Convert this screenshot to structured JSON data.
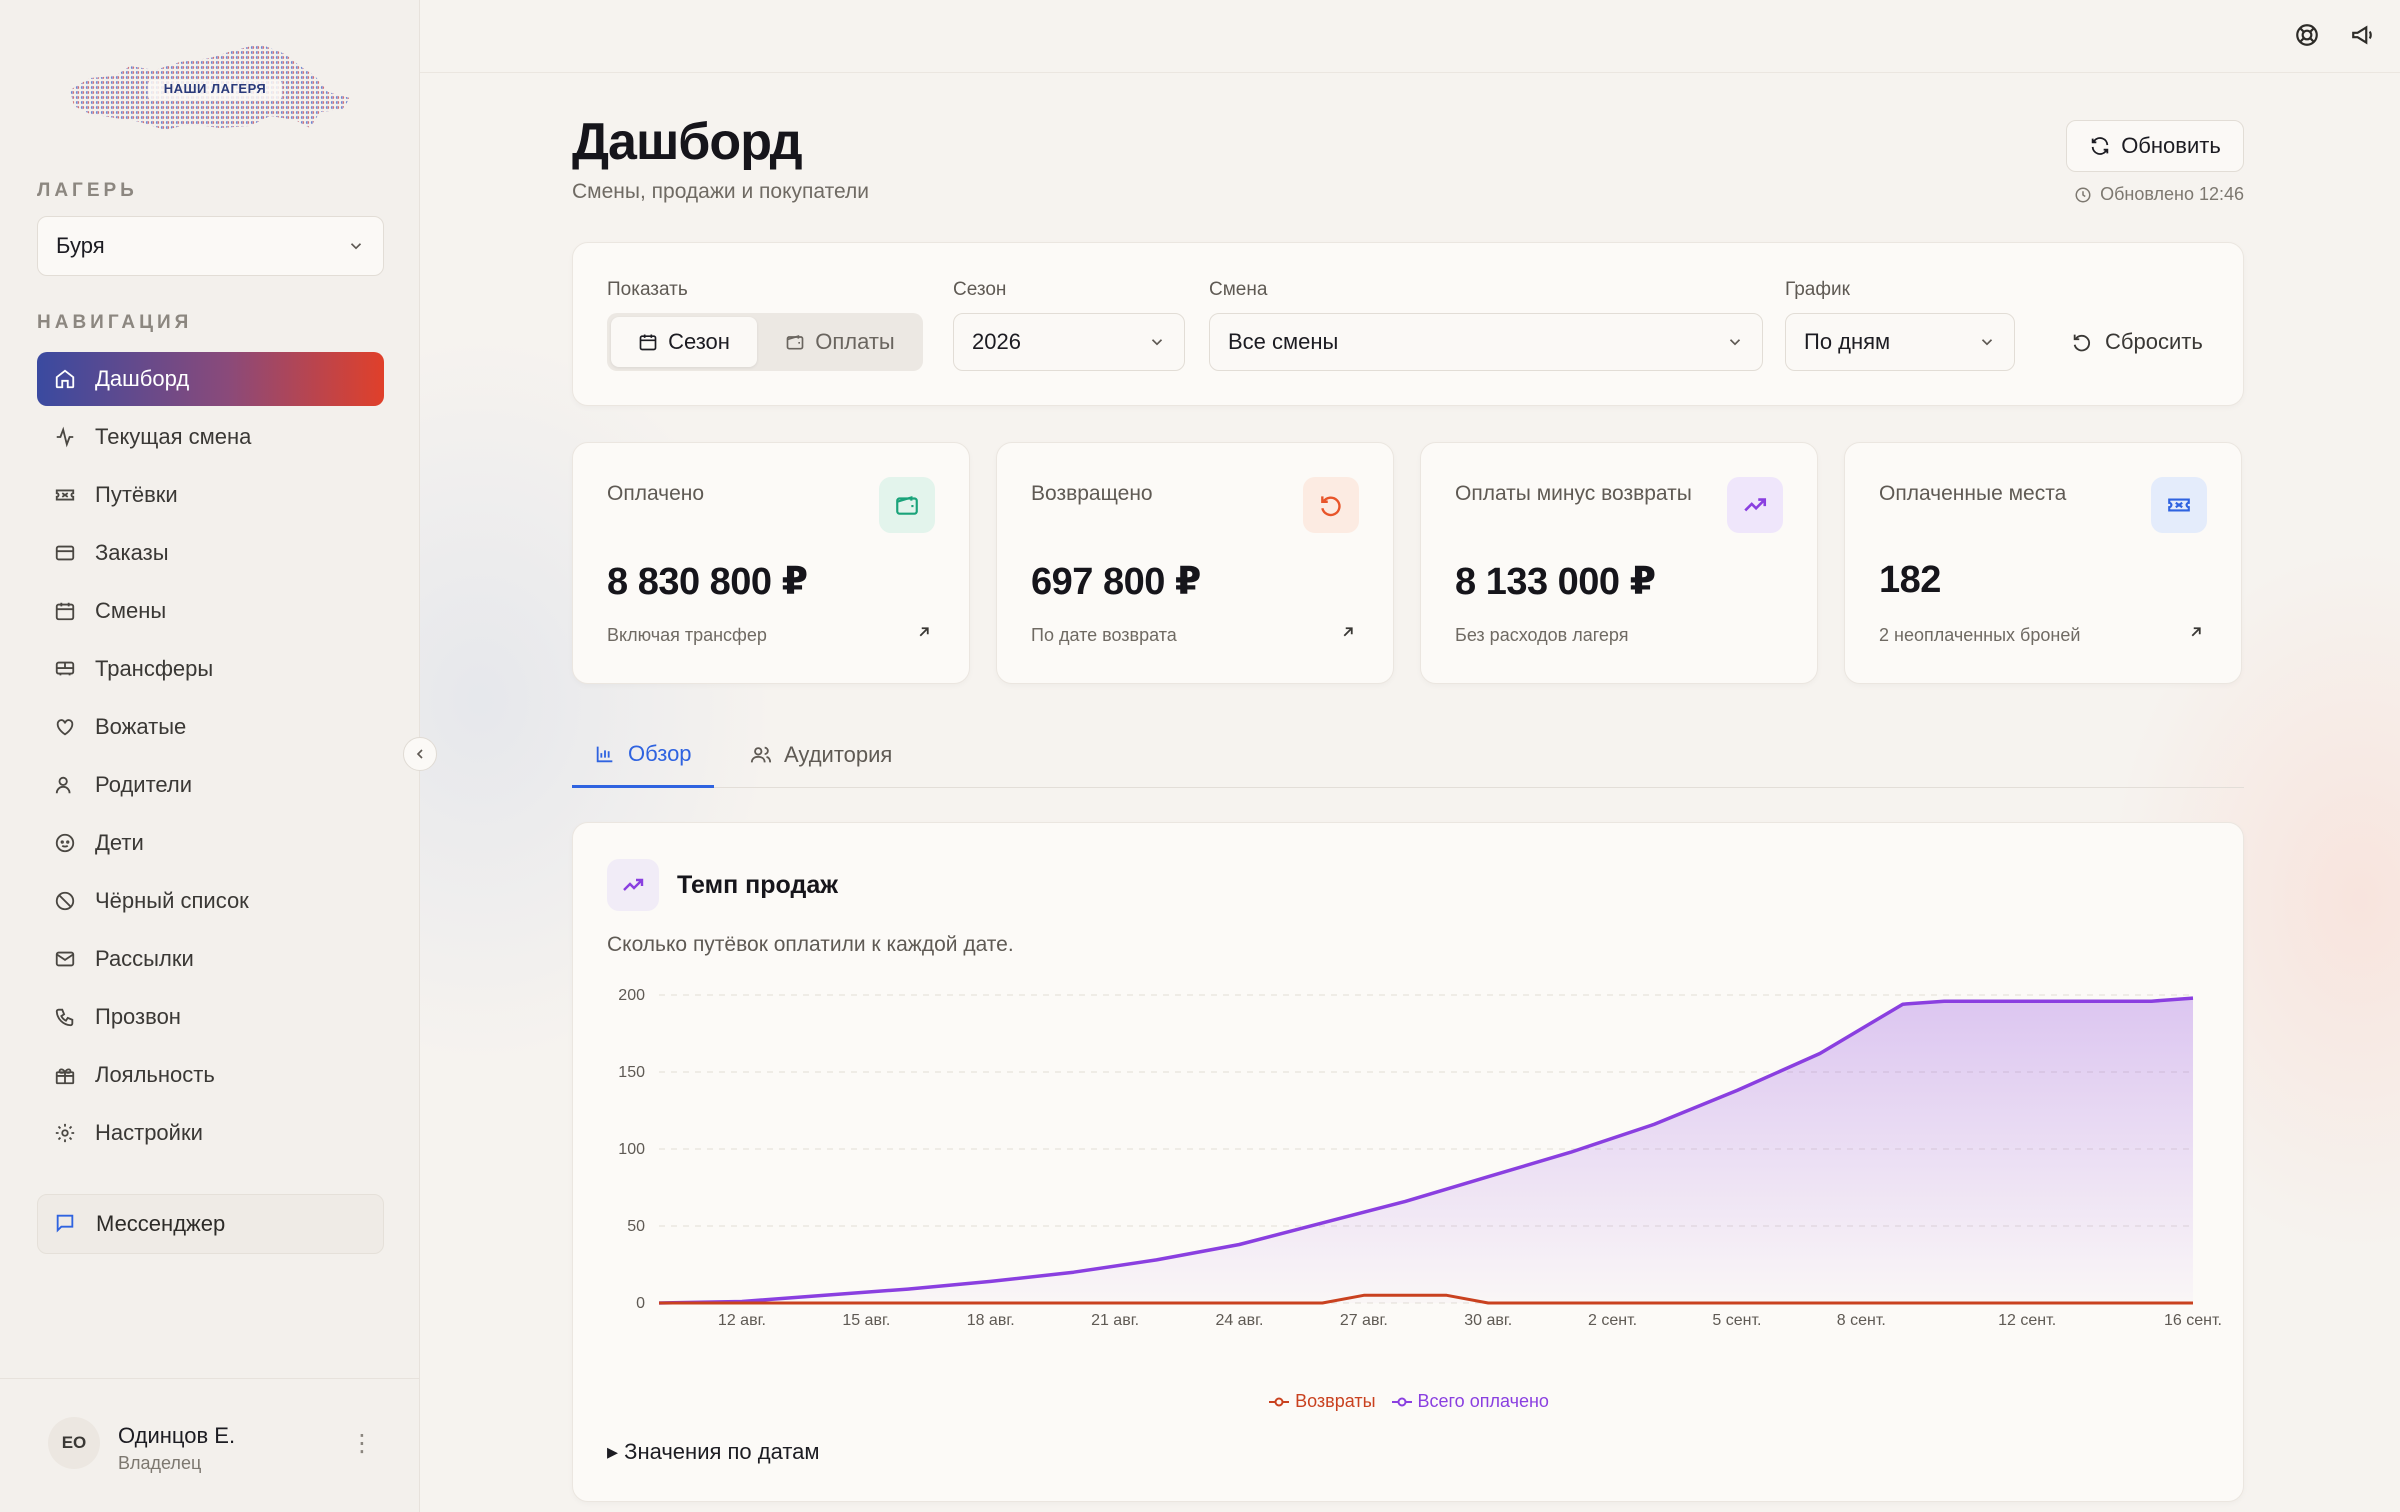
{
  "sidebar": {
    "logo_text": "НАШИ ЛАГЕРЯ",
    "camp_label": "ЛАГЕРЬ",
    "camp_value": "Буря",
    "nav_label": "НАВИГАЦИЯ",
    "items": [
      {
        "label": "Дашборд",
        "icon": "home-icon"
      },
      {
        "label": "Текущая смена",
        "icon": "activity-icon"
      },
      {
        "label": "Путёвки",
        "icon": "ticket-icon"
      },
      {
        "label": "Заказы",
        "icon": "card-icon"
      },
      {
        "label": "Смены",
        "icon": "calendar-icon"
      },
      {
        "label": "Трансферы",
        "icon": "bus-icon"
      },
      {
        "label": "Вожатые",
        "icon": "heart-hand-icon"
      },
      {
        "label": "Родители",
        "icon": "users-icon"
      },
      {
        "label": "Дети",
        "icon": "baby-icon"
      },
      {
        "label": "Чёрный список",
        "icon": "ban-icon"
      },
      {
        "label": "Рассылки",
        "icon": "mail-icon"
      },
      {
        "label": "Прозвон",
        "icon": "phone-icon"
      },
      {
        "label": "Лояльность",
        "icon": "gift-icon"
      },
      {
        "label": "Настройки",
        "icon": "gear-icon"
      }
    ],
    "messenger_label": "Мессенджер",
    "user": {
      "initials": "ЕО",
      "name": "Одинцов Е.",
      "role": "Владелец"
    }
  },
  "header": {
    "title": "Дашборд",
    "subtitle": "Смены, продажи и покупатели",
    "refresh_label": "Обновить",
    "updated_text": "Обновлено 12:46"
  },
  "filters": {
    "show_label": "Показать",
    "show_options": [
      "Сезон",
      "Оплаты"
    ],
    "season_label": "Сезон",
    "season_value": "2026",
    "shift_label": "Смена",
    "shift_value": "Все смены",
    "chart_label": "График",
    "chart_value": "По дням",
    "reset_label": "Сбросить"
  },
  "stats": [
    {
      "label": "Оплачено",
      "value": "8 830 800 ₽",
      "note": "Включая трансфер",
      "icon": "wallet-icon",
      "color": "#1aa37a",
      "bg": "#e3f4ec"
    },
    {
      "label": "Возвращено",
      "value": "697 800 ₽",
      "note": "По дате возврата",
      "icon": "undo-icon",
      "color": "#e8552a",
      "bg": "#fcebe2"
    },
    {
      "label": "Оплаты минус возвраты",
      "value": "8 133 000 ₽",
      "note": "Без расходов лагеря",
      "icon": "trend-up-icon",
      "color": "#8a3fe0",
      "bg": "#efe6fb"
    },
    {
      "label": "Оплаченные места",
      "value": "182",
      "note": "2 неоплаченных броней",
      "icon": "ticket-icon",
      "color": "#2f63e0",
      "bg": "#e4ecfb"
    }
  ],
  "tabs": [
    {
      "label": "Обзор",
      "icon": "bar-chart-icon"
    },
    {
      "label": "Аудитория",
      "icon": "users-icon"
    }
  ],
  "chart_card": {
    "title": "Темп продаж",
    "description": "Сколько путёвок оплатили к каждой дате.",
    "values_toggle": "▸ Значения по датам"
  },
  "colors": {
    "accent": "#2f63e0",
    "paid": "#8a3fe0",
    "refunds": "#c9411f"
  },
  "chart_data": {
    "type": "area",
    "x_ticks": [
      "12 авг.",
      "15 авг.",
      "18 авг.",
      "21 авг.",
      "24 авг.",
      "27 авг.",
      "30 авг.",
      "2 сент.",
      "5 сент.",
      "8 сент.",
      "12 сент.",
      "16 сент."
    ],
    "ylim": [
      0,
      200
    ],
    "y_ticks": [
      0,
      50,
      100,
      150,
      200
    ],
    "grid": true,
    "legend_position": "bottom",
    "series": [
      {
        "name": "Возвраты",
        "color": "#c9411f",
        "type": "line",
        "points": [
          [
            "10 авг.",
            0
          ],
          [
            "26 авг.",
            0
          ],
          [
            "27 авг.",
            5
          ],
          [
            "28 авг.",
            5
          ],
          [
            "29 авг.",
            5
          ],
          [
            "30 авг.",
            0
          ],
          [
            "16 сент.",
            0
          ]
        ]
      },
      {
        "name": "Всего оплачено",
        "color": "#8a3fe0",
        "type": "area",
        "points": [
          [
            "10 авг.",
            0
          ],
          [
            "12 авг.",
            1
          ],
          [
            "14 авг.",
            5
          ],
          [
            "16 авг.",
            9
          ],
          [
            "18 авг.",
            14
          ],
          [
            "20 авг.",
            20
          ],
          [
            "22 авг.",
            28
          ],
          [
            "24 авг.",
            38
          ],
          [
            "26 авг.",
            52
          ],
          [
            "28 авг.",
            66
          ],
          [
            "30 авг.",
            82
          ],
          [
            "1 сент.",
            98
          ],
          [
            "3 сент.",
            116
          ],
          [
            "5 сент.",
            138
          ],
          [
            "7 сент.",
            162
          ],
          [
            "8 сент.",
            178
          ],
          [
            "9 сент.",
            194
          ],
          [
            "10 сент.",
            196
          ],
          [
            "12 сент.",
            196
          ],
          [
            "14 сент.",
            196
          ],
          [
            "15 сент.",
            196
          ],
          [
            "16 сент.",
            198
          ]
        ]
      }
    ]
  }
}
